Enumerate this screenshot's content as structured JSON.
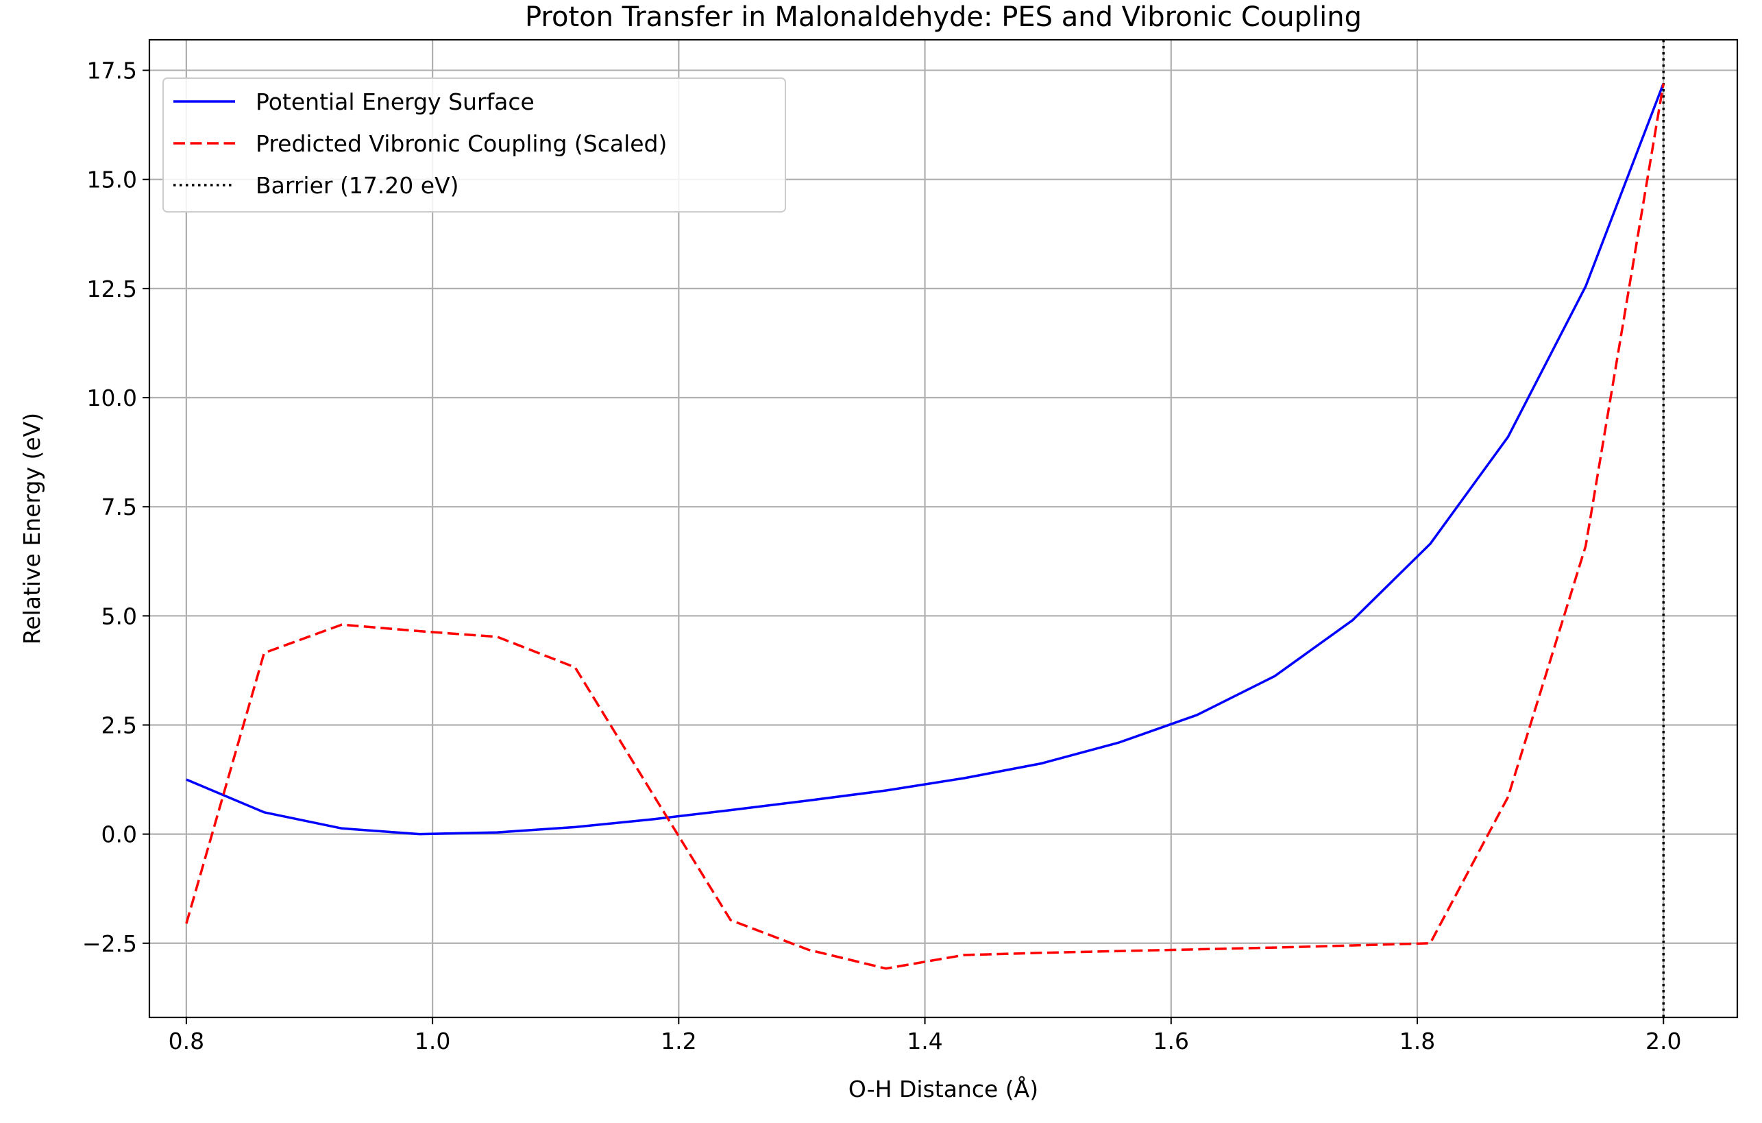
{
  "chart_data": {
    "type": "line",
    "title": "Proton Transfer in Malonaldehyde: PES and Vibronic Coupling",
    "xlabel": "O-H Distance (Å)",
    "ylabel": "Relative Energy (eV)",
    "xlim": [
      0.77,
      2.06
    ],
    "ylim": [
      -4.2,
      18.2
    ],
    "grid": true,
    "legend_position": "top-left",
    "x_ticks": [
      0.8,
      1.0,
      1.2,
      1.4,
      1.6,
      1.8,
      2.0
    ],
    "x_tick_labels": [
      "0.8",
      "1.0",
      "1.2",
      "1.4",
      "1.6",
      "1.8",
      "2.0"
    ],
    "y_ticks": [
      -2.5,
      0.0,
      2.5,
      5.0,
      7.5,
      10.0,
      12.5,
      15.0,
      17.5
    ],
    "y_tick_labels": [
      "−2.5",
      "0.0",
      "2.5",
      "5.0",
      "7.5",
      "10.0",
      "12.5",
      "15.0",
      "17.5"
    ],
    "x": [
      0.8,
      0.8632,
      0.9263,
      0.9895,
      1.0526,
      1.1158,
      1.1789,
      1.2421,
      1.3053,
      1.3684,
      1.4316,
      1.4947,
      1.5579,
      1.6211,
      1.6842,
      1.7474,
      1.8105,
      1.8737,
      1.9368,
      2.0
    ],
    "series": [
      {
        "name": "Potential Energy Surface",
        "color": "#0000ff",
        "style": "solid",
        "values": [
          1.25,
          0.5,
          0.13,
          0.0,
          0.04,
          0.16,
          0.34,
          0.55,
          0.77,
          1.0,
          1.28,
          1.62,
          2.1,
          2.73,
          3.62,
          4.9,
          6.65,
          9.1,
          12.55,
          17.2
        ]
      },
      {
        "name": "Predicted Vibronic Coupling (Scaled)",
        "color": "#ff0000",
        "style": "dashed",
        "values": [
          -2.05,
          4.15,
          4.8,
          4.65,
          4.52,
          3.82,
          0.92,
          -1.97,
          -2.65,
          -3.08,
          -2.77,
          -2.72,
          -2.68,
          -2.64,
          -2.6,
          -2.55,
          -2.5,
          0.85,
          6.6,
          17.2
        ]
      },
      {
        "name": "Barrier (17.20 eV)",
        "color": "#000000",
        "style": "dotted",
        "vertical_line_x": 2.0
      }
    ]
  }
}
